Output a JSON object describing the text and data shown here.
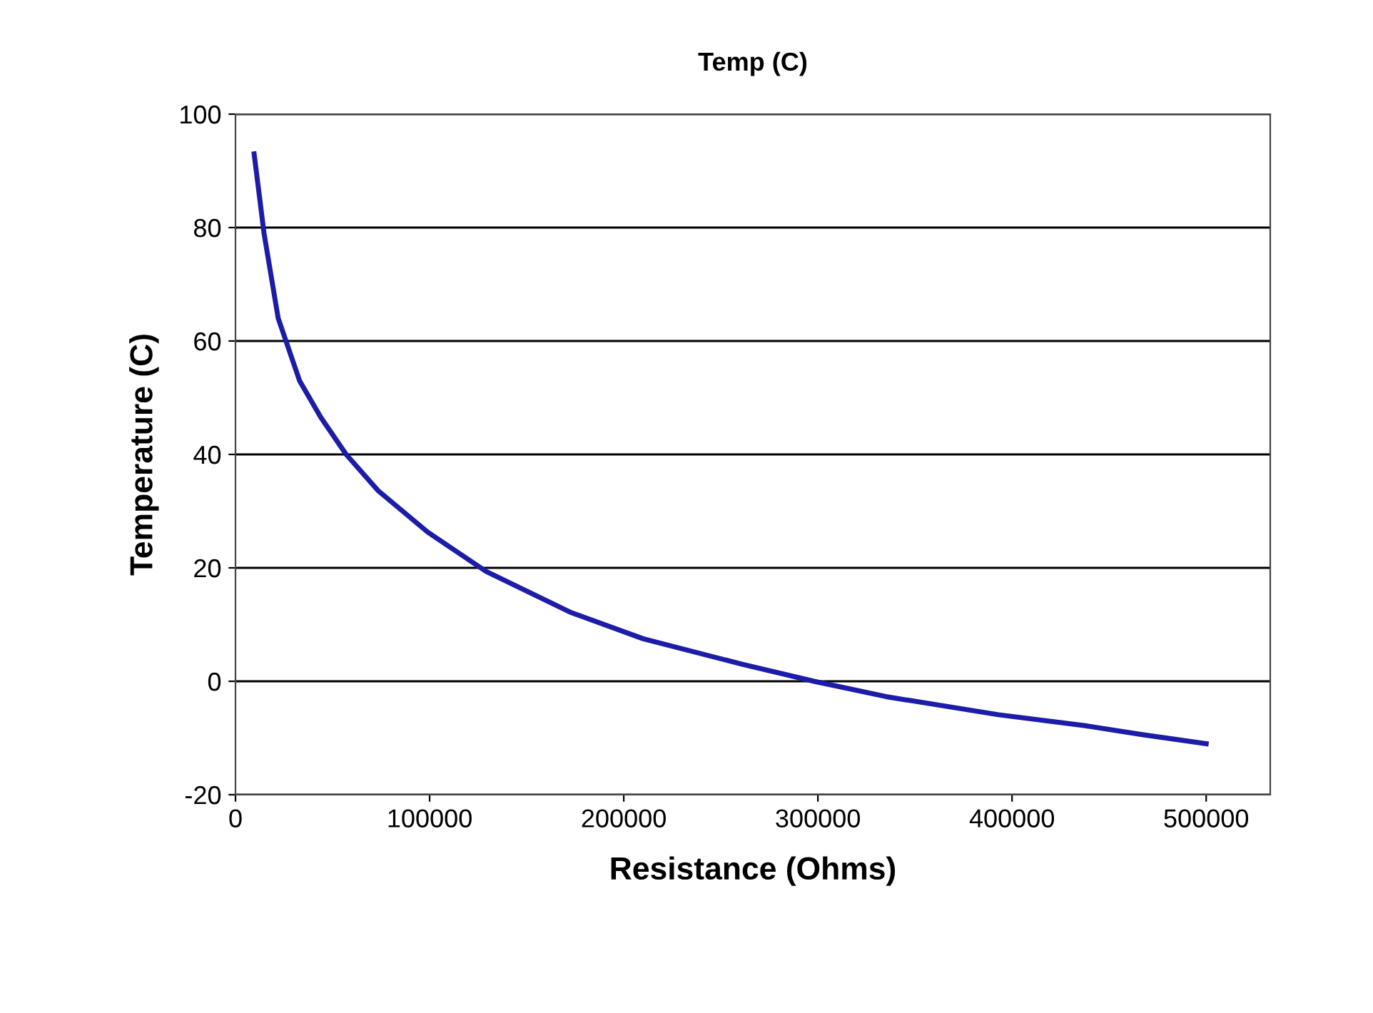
{
  "chart_data": {
    "type": "line",
    "title": "Temp (C)",
    "xlabel": "Resistance (Ohms)",
    "ylabel": "Temperature (C)",
    "x": [
      9600,
      14700,
      22000,
      33000,
      44000,
      57000,
      73500,
      99000,
      129000,
      173000,
      210000,
      261000,
      298000,
      335000,
      393000,
      437000,
      467000,
      500000
    ],
    "series": [
      {
        "color": "#1c1ca8",
        "values": [
          93,
          79,
          64,
          53,
          46.5,
          40,
          33.6,
          26.3,
          19.4,
          12.1,
          7.5,
          3,
          0,
          -2.7,
          -5.9,
          -7.8,
          -9.4,
          -11
        ]
      }
    ],
    "xlim": [
      0,
      533000
    ],
    "xticks": [
      0,
      100000,
      200000,
      300000,
      400000,
      500000
    ],
    "ylim": [
      -20,
      100
    ],
    "yticks": [
      -20,
      0,
      20,
      40,
      60,
      80,
      100
    ],
    "grid": "y",
    "legend": false,
    "marker": "none",
    "line_style": "solid"
  }
}
